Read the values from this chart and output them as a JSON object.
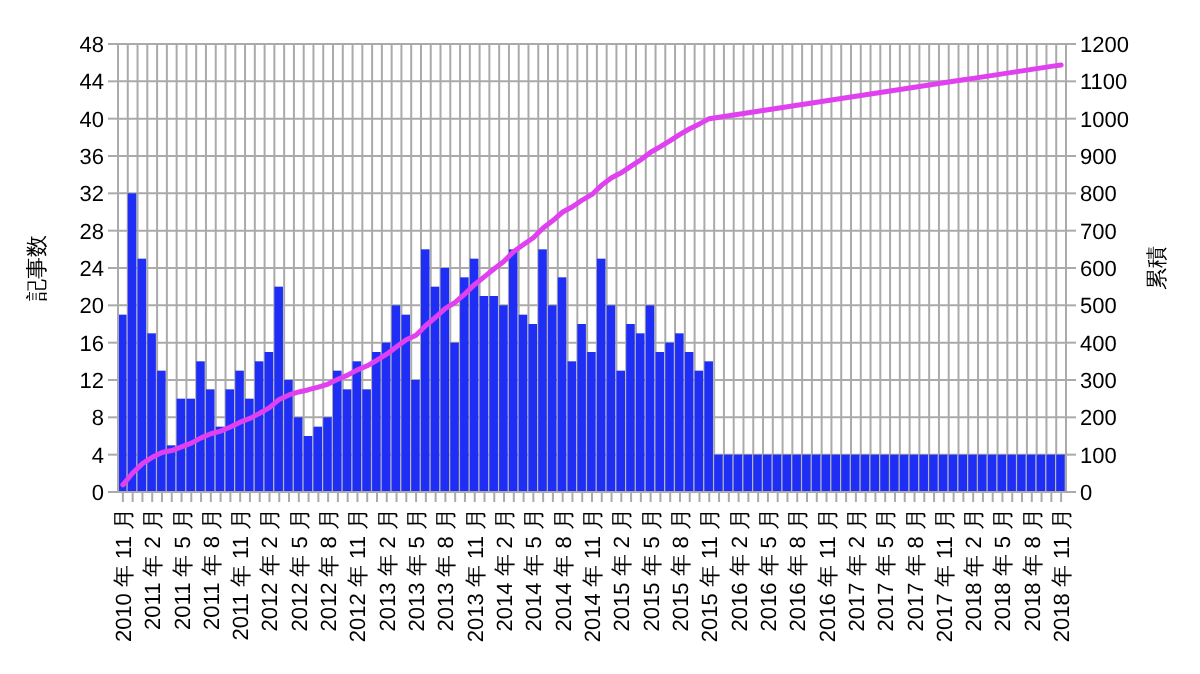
{
  "chart_data": {
    "type": "bar",
    "ylabel": "記事数",
    "y2label": "累積",
    "grid": true,
    "categories": [
      "2010 年 11 月",
      null,
      null,
      "2011 年 2 月",
      null,
      null,
      "2011 年 5 月",
      null,
      null,
      "2011 年 8 月",
      null,
      null,
      "2011 年 11 月",
      null,
      null,
      "2012 年 2 月",
      null,
      null,
      "2012 年 5 月",
      null,
      null,
      "2012 年 8 月",
      null,
      null,
      "2012 年 11 月",
      null,
      null,
      "2013 年 2 月",
      null,
      null,
      "2013 年 5 月",
      null,
      null,
      "2013 年 8 月",
      null,
      null,
      "2013 年 11 月",
      null,
      null,
      "2014 年 2 月",
      null,
      null,
      "2014 年 5 月",
      null,
      null,
      "2014 年 8 月",
      null,
      null,
      "2014 年 11 月",
      null,
      null,
      "2015 年 2 月",
      null,
      null,
      "2015 年 5 月",
      null,
      null,
      "2015 年 8 月",
      null,
      null,
      "2015 年 11 月",
      null,
      null,
      "2016 年 2 月",
      null,
      null,
      "2016 年 5 月",
      null,
      null,
      "2016 年 8 月",
      null,
      null,
      "2016 年 11 月",
      null,
      null,
      "2017 年 2 月",
      null,
      null,
      "2017 年 5 月",
      null,
      null,
      "2017 年 8 月",
      null,
      null,
      "2017 年 11 月",
      null,
      null,
      "2018 年 2 月",
      null,
      null,
      "2018 年 5 月",
      null,
      null,
      "2018 年 8 月",
      null,
      null,
      "2018 年 11 月"
    ],
    "series": [
      {
        "color": "#1f2ef5",
        "values": [
          19,
          32,
          25,
          17,
          13,
          5,
          10,
          10,
          14,
          11,
          7,
          11,
          13,
          10,
          14,
          15,
          22,
          12,
          8,
          6,
          7,
          8,
          13,
          11,
          14,
          11,
          15,
          16,
          20,
          19,
          12,
          26,
          22,
          24,
          16,
          23,
          25,
          21,
          21,
          20,
          26,
          19,
          18,
          26,
          20,
          23,
          14,
          18,
          15,
          25,
          20,
          13,
          18,
          17,
          20,
          15,
          16,
          17,
          15,
          13,
          14,
          4,
          4,
          4,
          4,
          4,
          4,
          4,
          4,
          4,
          4,
          4,
          4,
          4,
          4,
          4,
          4,
          4,
          4,
          4,
          4,
          4,
          4,
          4,
          4,
          4,
          4,
          4,
          4,
          4,
          4,
          4,
          4,
          4,
          4,
          4,
          4
        ]
      },
      {
        "type": "line",
        "axis": "y2",
        "color": "#e040f0",
        "values": [
          19,
          51,
          76,
          93,
          106,
          111,
          121,
          131,
          145,
          156,
          163,
          174,
          187,
          197,
          211,
          226,
          248,
          260,
          268,
          274,
          281,
          289,
          302,
          313,
          327,
          338,
          353,
          369,
          389,
          408,
          420,
          446,
          468,
          492,
          508,
          531,
          556,
          577,
          598,
          618,
          644,
          663,
          681,
          707,
          727,
          750,
          764,
          782,
          797,
          822,
          842,
          855,
          873,
          890,
          910,
          925,
          941,
          958,
          973,
          986,
          1000,
          1004,
          1008,
          1012,
          1016,
          1020,
          1024,
          1028,
          1032,
          1036,
          1040,
          1044,
          1048,
          1052,
          1056,
          1060,
          1064,
          1068,
          1072,
          1076,
          1080,
          1084,
          1088,
          1092,
          1096,
          1100,
          1104,
          1108,
          1112,
          1116,
          1120,
          1124,
          1128,
          1132,
          1136,
          1140,
          1144
        ]
      }
    ],
    "ylim": [
      0,
      48
    ],
    "yticks": [
      0,
      4,
      8,
      12,
      16,
      20,
      24,
      28,
      32,
      36,
      40,
      44,
      48
    ],
    "y2lim": [
      0,
      1200
    ],
    "y2ticks": [
      0,
      100,
      200,
      300,
      400,
      500,
      600,
      700,
      800,
      900,
      1000,
      1100,
      1200
    ]
  }
}
